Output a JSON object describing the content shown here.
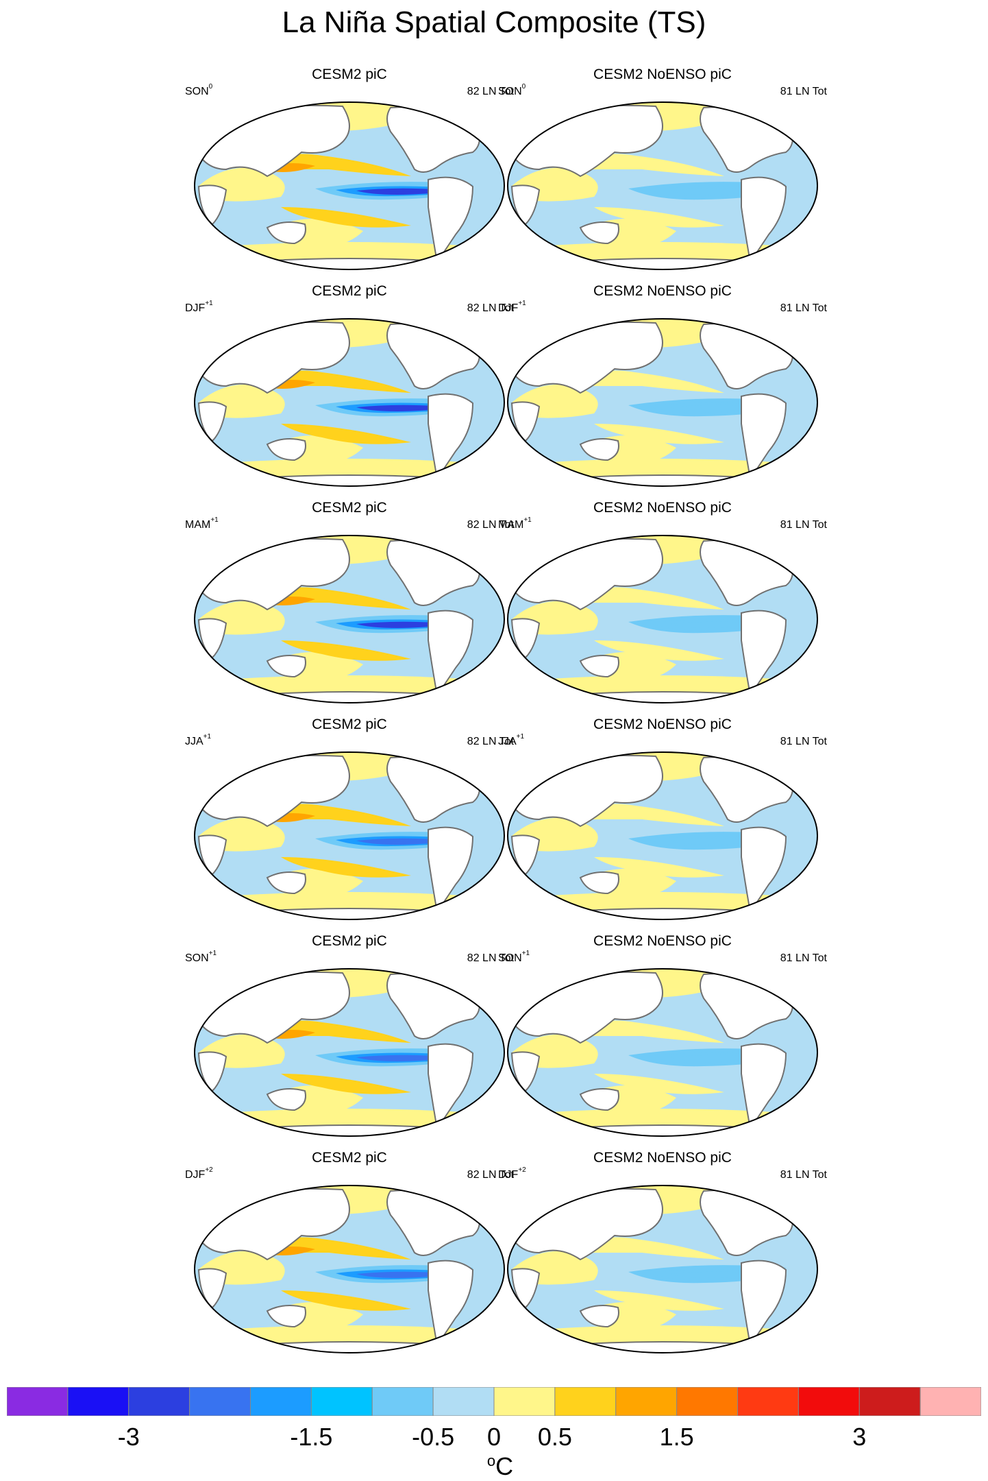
{
  "title": "La Niña Spatial Composite (TS)",
  "columns": [
    {
      "model": "CESM2 piC",
      "count": "82 LN Tot"
    },
    {
      "model": "CESM2 NoENSO piC",
      "count": "81 LN Tot"
    }
  ],
  "seasons": [
    {
      "name": "SON",
      "sup": "0"
    },
    {
      "name": "DJF",
      "sup": "+1"
    },
    {
      "name": "MAM",
      "sup": "+1"
    },
    {
      "name": "JJA",
      "sup": "+1"
    },
    {
      "name": "SON",
      "sup": "+1"
    },
    {
      "name": "DJF",
      "sup": "+2"
    }
  ],
  "colorbar": {
    "colors": [
      "#8a2be2",
      "#1a10f5",
      "#2c3fe0",
      "#3873f0",
      "#1c9cff",
      "#00c3ff",
      "#6fcaf7",
      "#b1ddf4",
      "#fff68a",
      "#ffd21c",
      "#ffa500",
      "#ff7800",
      "#ff3a12",
      "#f20c0c",
      "#cd1c1c",
      "#ffb2b2"
    ],
    "ticks": [
      "-3",
      "-1.5",
      "-0.5",
      "0",
      "0.5",
      "1.5",
      "3"
    ],
    "unit_base": "C",
    "unit_sup": "o"
  }
}
